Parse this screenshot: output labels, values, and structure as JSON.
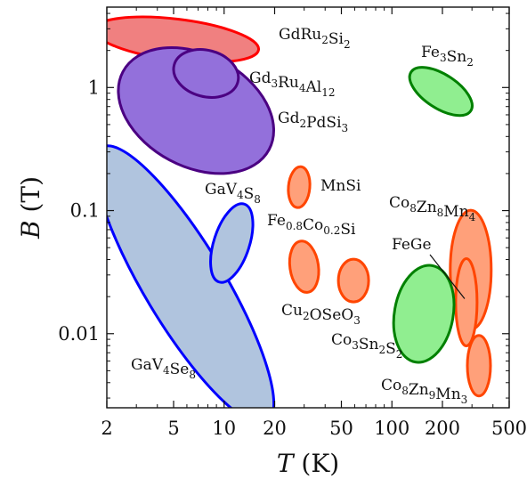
{
  "chart_data": {
    "type": "scatter",
    "title": "",
    "xlabel": "T (K)",
    "ylabel": "B (T)",
    "x_scale": "log",
    "y_scale": "log",
    "xlim": [
      2,
      500
    ],
    "ylim": [
      0.0025,
      4.5
    ],
    "grid": false,
    "x_ticks": [
      {
        "value": 2,
        "label": "2"
      },
      {
        "value": 5,
        "label": "5"
      },
      {
        "value": 10,
        "label": "10"
      },
      {
        "value": 20,
        "label": "20"
      },
      {
        "value": 50,
        "label": "50"
      },
      {
        "value": 100,
        "label": "100"
      },
      {
        "value": 200,
        "label": "200"
      },
      {
        "value": 500,
        "label": "500"
      }
    ],
    "y_ticks": [
      {
        "value": 0.01,
        "label": "0.01"
      },
      {
        "value": 0.1,
        "label": "0.1"
      },
      {
        "value": 1,
        "label": "1"
      }
    ],
    "materials": [
      {
        "base": "GdRu",
        "sub": "2",
        "rest": "Si",
        "sub2": "2",
        "t_center": 5.2,
        "b_center": 2.45,
        "fill": "#f08080",
        "stroke": "#ff0000"
      },
      {
        "base": "Gd",
        "sub": "3",
        "rest": "Ru",
        "sub2": "4",
        "tail": "Al",
        "sub3": "12",
        "t_center": 7.8,
        "b_center": 1.3,
        "fill": "#9370db",
        "stroke": "#4b0082"
      },
      {
        "base": "Gd",
        "sub": "2",
        "rest": "PdSi",
        "sub2": "3",
        "t_center": 6.8,
        "b_center": 0.65,
        "fill": "#9370db",
        "stroke": "#4b0082"
      },
      {
        "base": "Fe",
        "sub": "3",
        "rest": "Sn",
        "sub2": "2",
        "t_center": 196,
        "b_center": 0.93,
        "fill": "#90ee90",
        "stroke": "#008000"
      },
      {
        "base": "MnSi",
        "t_center": 28,
        "b_center": 0.155,
        "fill": "#ffa07a",
        "stroke": "#ff4500"
      },
      {
        "base": "GaV",
        "sub": "4",
        "rest": "S",
        "sub2": "8",
        "t_center": 11.1,
        "b_center": 0.0545,
        "fill": "#b0c4de",
        "stroke": "#0000ff"
      },
      {
        "base": "Fe",
        "sub": "0.8",
        "rest": "Co",
        "sub2": "0.2",
        "tail": "Si",
        "t_center": 30,
        "b_center": 0.035,
        "fill": "#ffa07a",
        "stroke": "#ff4500"
      },
      {
        "base": "Cu",
        "sub": "2",
        "rest": "OSeO",
        "sub2": "3",
        "t_center": 59,
        "b_center": 0.027,
        "fill": "#ffa07a",
        "stroke": "#ff4500"
      },
      {
        "base": "Co",
        "sub": "8",
        "rest": "Zn",
        "sub2": "8",
        "tail": "Mn",
        "sub3": "4",
        "t_center": 295,
        "b_center": 0.033,
        "fill": "#ffa07a",
        "stroke": "#ff4500"
      },
      {
        "base": "FeGe",
        "t_center": 278,
        "b_center": 0.018,
        "fill": "#ffa07a",
        "stroke": "#ff4500"
      },
      {
        "base": "Co",
        "sub": "3",
        "rest": "Sn",
        "sub2": "2",
        "tail": "S",
        "sub3": "2",
        "t_center": 155,
        "b_center": 0.0145,
        "fill": "#90ee90",
        "stroke": "#008000"
      },
      {
        "base": "Co",
        "sub": "8",
        "rest": "Zn",
        "sub2": "9",
        "tail": "Mn",
        "sub3": "3",
        "t_center": 330,
        "b_center": 0.0055,
        "fill": "#ffa07a",
        "stroke": "#ff4500"
      },
      {
        "base": "GaV",
        "sub": "4",
        "rest": "Se",
        "sub2": "8",
        "t_center": 5.8,
        "b_center": 0.025,
        "fill": "#b0c4de",
        "stroke": "#0000ff"
      }
    ]
  }
}
